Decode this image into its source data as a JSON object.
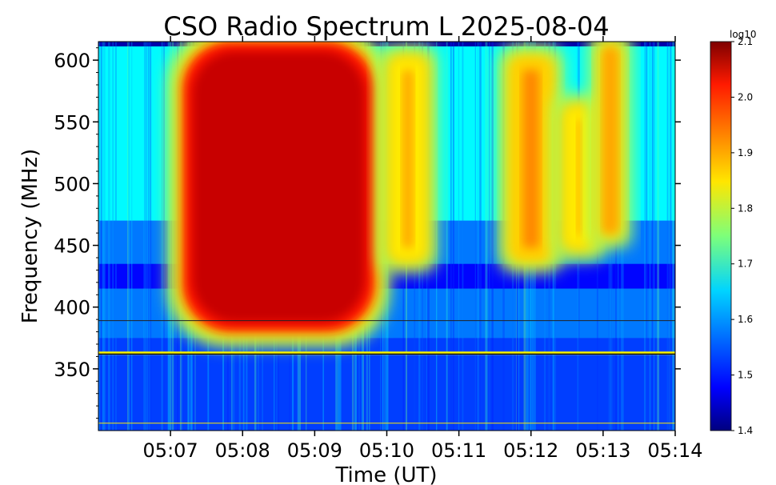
{
  "chart_data": {
    "type": "heatmap",
    "title": "CSO Radio Spectrum L 2025-08-04",
    "xlabel": "Time (UT)",
    "ylabel": "Frequency (MHz)",
    "x_ticks": [
      "05:07",
      "05:08",
      "05:09",
      "05:10",
      "05:11",
      "05:12",
      "05:13",
      "05:14"
    ],
    "x_range": [
      "05:06:00",
      "05:14:00"
    ],
    "y_ticks": [
      350,
      400,
      450,
      500,
      550,
      600
    ],
    "y_range": [
      300,
      615
    ],
    "colorbar": {
      "label": "log10",
      "range": [
        1.4,
        2.1
      ],
      "ticks": [
        "1.4",
        "1.5",
        "1.6",
        "1.7",
        "1.8",
        "1.9",
        "2.0",
        "2.1"
      ],
      "colormap": "jet"
    },
    "grid": false,
    "features": [
      {
        "name": "burst-core",
        "time_start": "05:07:10",
        "time_end": "05:09:50",
        "freq_min": 380,
        "freq_max": 615,
        "level": 2.05
      },
      {
        "name": "burst-tail",
        "time_start": "05:10:05",
        "time_end": "05:10:30",
        "freq_min": 440,
        "freq_max": 600,
        "level": 1.9
      },
      {
        "name": "late-emission-1",
        "time_start": "05:11:45",
        "time_end": "05:12:15",
        "freq_min": 440,
        "freq_max": 600,
        "level": 1.92
      },
      {
        "name": "late-emission-2",
        "time_start": "05:12:30",
        "time_end": "05:12:50",
        "freq_min": 450,
        "freq_max": 560,
        "level": 1.9
      },
      {
        "name": "late-emission-3",
        "time_start": "05:13:00",
        "time_end": "05:13:12",
        "freq_min": 460,
        "freq_max": 610,
        "level": 1.95
      }
    ]
  }
}
